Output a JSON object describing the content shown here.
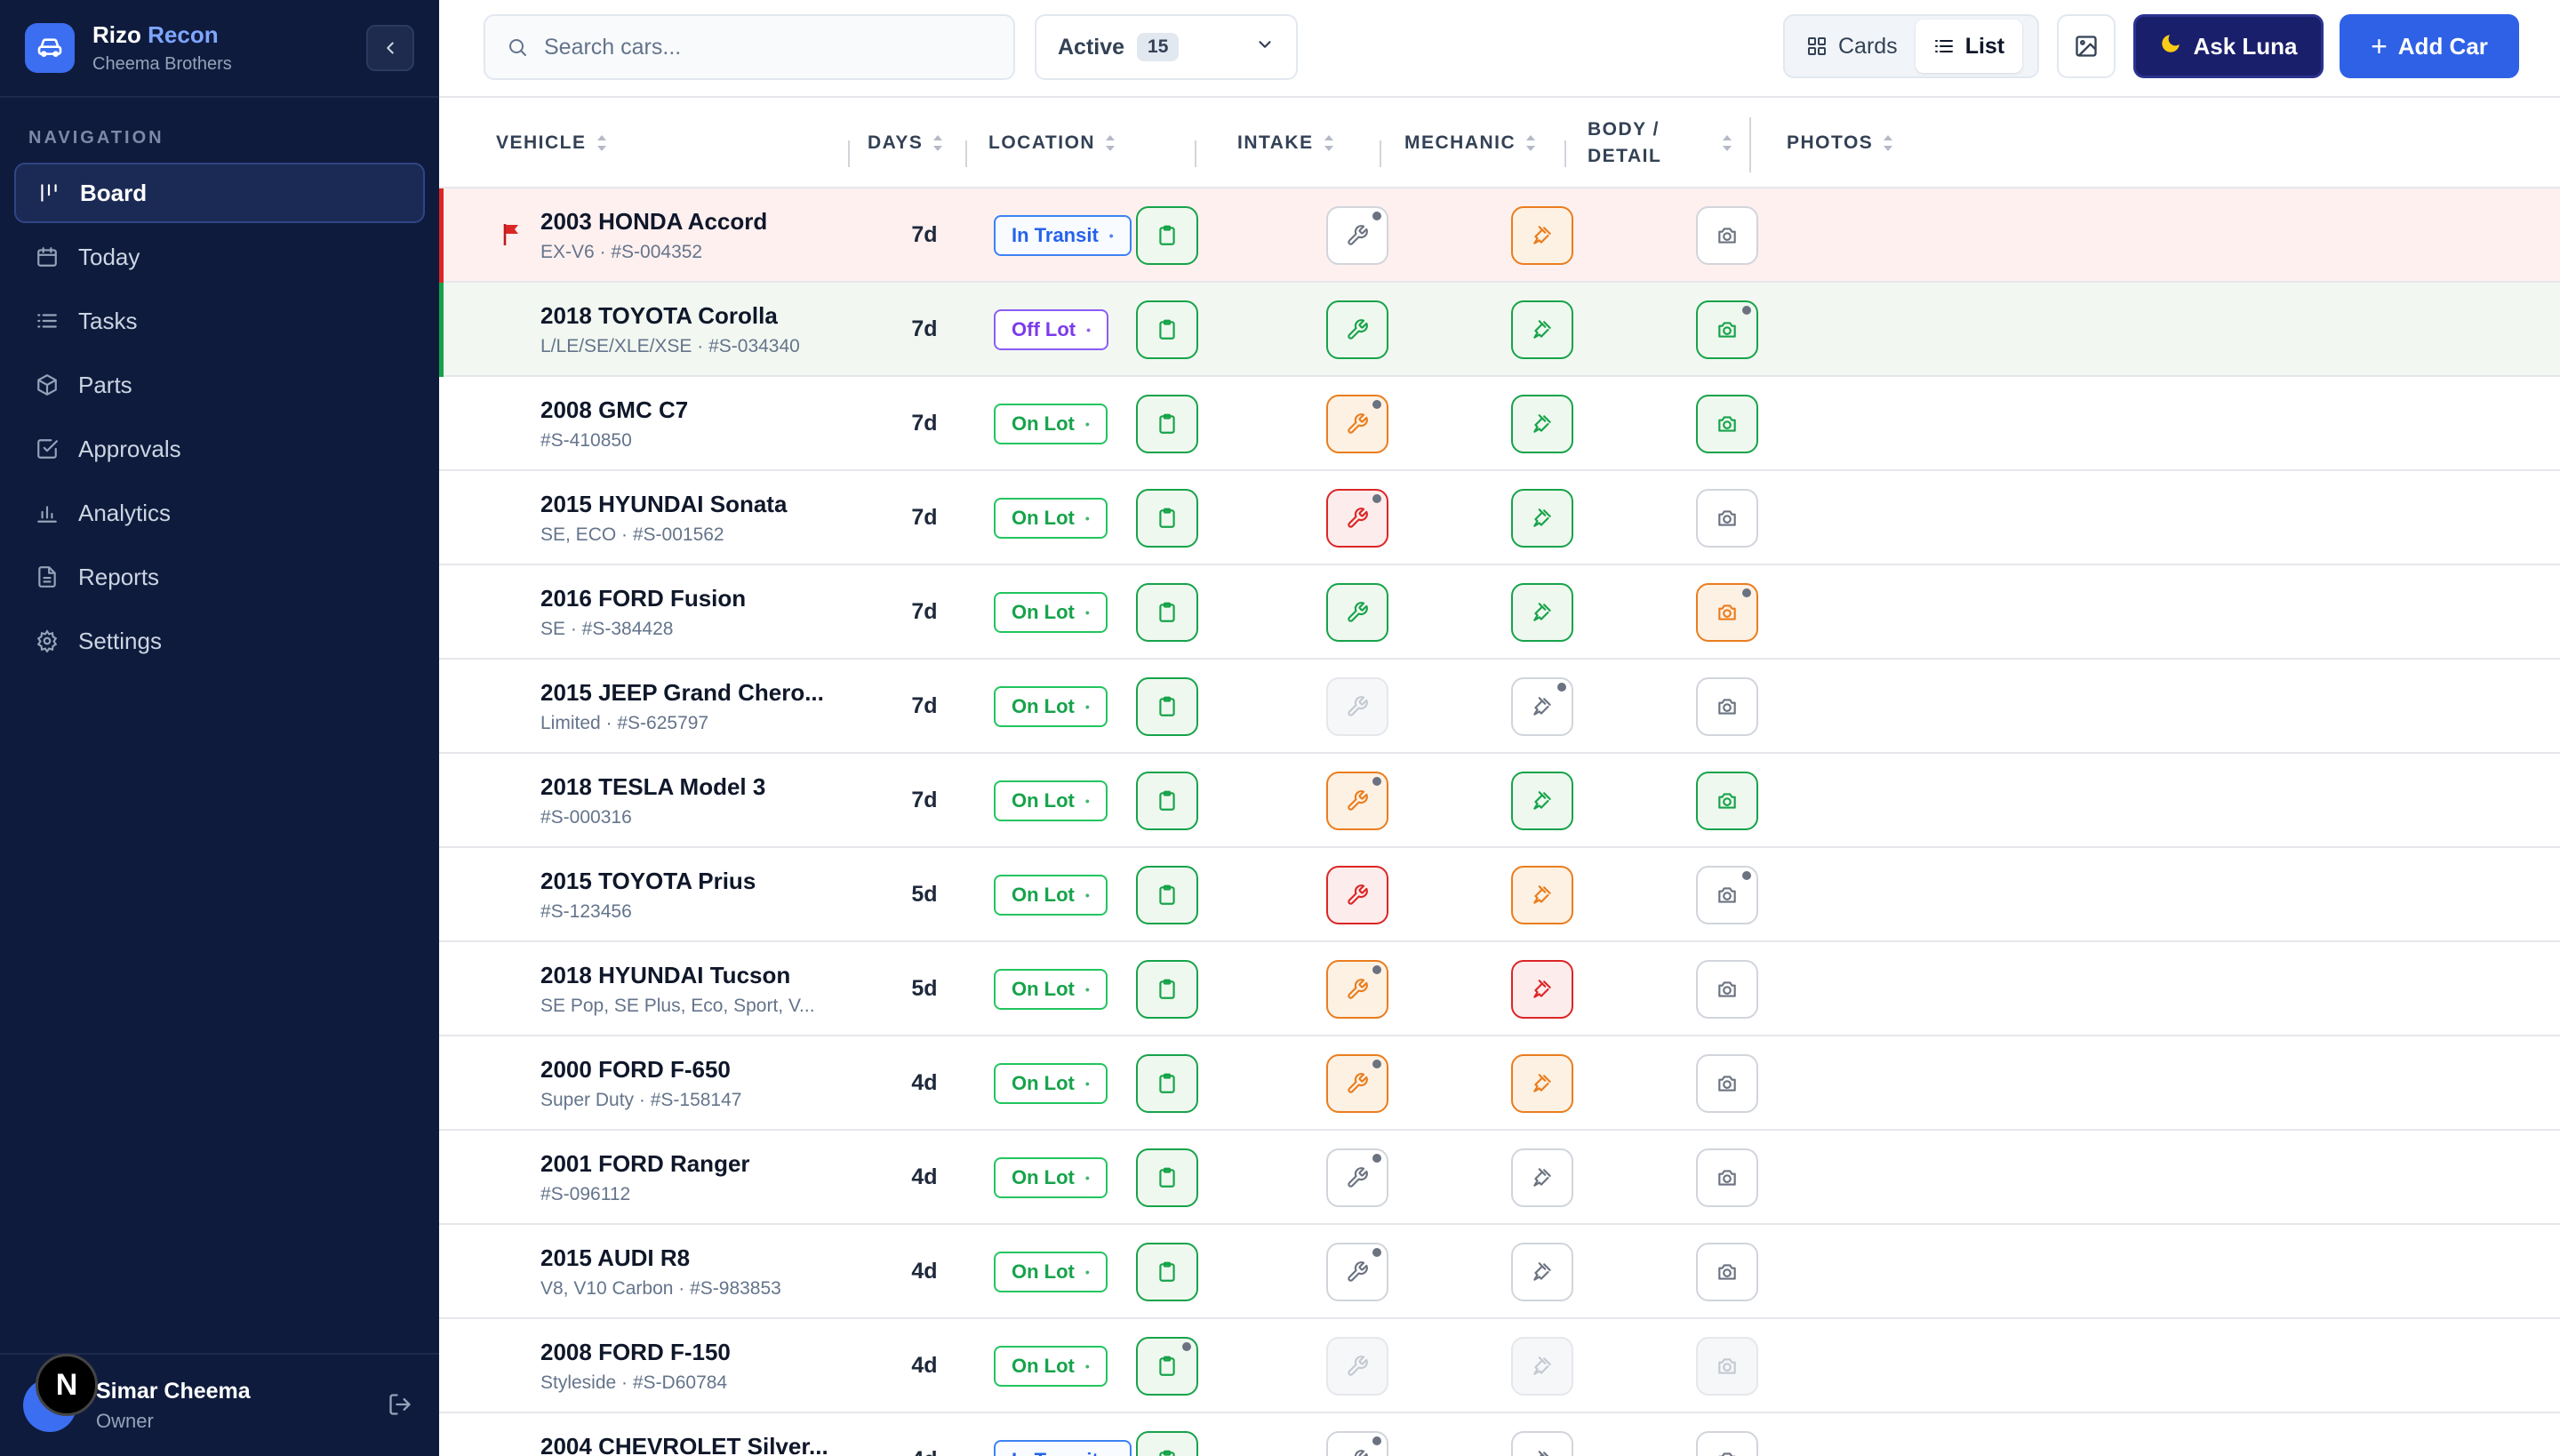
{
  "brand": {
    "title_main": "Rizo",
    "title_accent": "Recon",
    "subtitle": "Cheema Brothers"
  },
  "nav": {
    "heading": "NAVIGATION",
    "items": [
      {
        "label": "Board",
        "icon": "board-icon",
        "active": true
      },
      {
        "label": "Today",
        "icon": "calendar-icon"
      },
      {
        "label": "Tasks",
        "icon": "list-icon"
      },
      {
        "label": "Parts",
        "icon": "box-icon"
      },
      {
        "label": "Approvals",
        "icon": "check-square-icon"
      },
      {
        "label": "Analytics",
        "icon": "bar-chart-icon"
      },
      {
        "label": "Reports",
        "icon": "file-text-icon"
      },
      {
        "label": "Settings",
        "icon": "gear-icon"
      }
    ]
  },
  "user": {
    "badge": "N",
    "name": "Simar Cheema",
    "role": "Owner"
  },
  "toolbar": {
    "search_placeholder": "Search cars...",
    "filter_label": "Active",
    "filter_count": "15",
    "cards_label": "Cards",
    "list_label": "List",
    "ask_label": "Ask Luna",
    "add_label": "Add Car"
  },
  "columns": {
    "vehicle": "VEHICLE",
    "days": "DAYS",
    "location": "LOCATION",
    "intake": "INTAKE",
    "mechanic": "MECHANIC",
    "body_line1": "BODY /",
    "body_line2": "DETAIL",
    "photos": "PHOTOS"
  },
  "colors": {
    "sidebar_bg": "#0f1b3d",
    "accent_blue": "#2f61e6",
    "ask_bg": "#1a1f6b",
    "status_green": "#16a34a",
    "status_orange": "#ea7d1e",
    "status_red": "#dc2626",
    "status_gray": "#6b7280"
  },
  "rows": [
    {
      "title": "2003 HONDA Accord",
      "sub": "EX-V6 · #S-004352",
      "days": "7d",
      "location": "In Transit",
      "loc_type": "transit",
      "flag": true,
      "row_type": "flagged",
      "intake": "green",
      "mechanic": "gray-dot",
      "body": "orange",
      "photos": "gray"
    },
    {
      "title": "2018 TOYOTA Corolla",
      "sub": "L/LE/SE/XLE/XSE · #S-034340",
      "days": "7d",
      "location": "Off Lot",
      "loc_type": "offlot",
      "row_type": "green",
      "intake": "green",
      "mechanic": "green",
      "body": "green",
      "photos": "green-dot"
    },
    {
      "title": "2008 GMC C7",
      "sub": "#S-410850",
      "days": "7d",
      "location": "On Lot",
      "loc_type": "onlot",
      "intake": "green",
      "mechanic": "orange-dot",
      "body": "green",
      "photos": "green"
    },
    {
      "title": "2015 HYUNDAI Sonata",
      "sub": "SE, ECO · #S-001562",
      "days": "7d",
      "location": "On Lot",
      "loc_type": "onlot",
      "intake": "green",
      "mechanic": "red-dot",
      "body": "green",
      "photos": "gray"
    },
    {
      "title": "2016 FORD Fusion",
      "sub": "SE · #S-384428",
      "days": "7d",
      "location": "On Lot",
      "loc_type": "onlot",
      "intake": "green",
      "mechanic": "green",
      "body": "green",
      "photos": "orange-dot"
    },
    {
      "title": "2015 JEEP Grand Chero...",
      "sub": "Limited · #S-625797",
      "days": "7d",
      "location": "On Lot",
      "loc_type": "onlot",
      "intake": "green",
      "mechanic": "faint",
      "body": "gray-dot",
      "photos": "gray"
    },
    {
      "title": "2018 TESLA Model 3",
      "sub": "#S-000316",
      "days": "7d",
      "location": "On Lot",
      "loc_type": "onlot",
      "intake": "green",
      "mechanic": "orange-dot",
      "body": "green",
      "photos": "green"
    },
    {
      "title": "2015 TOYOTA Prius",
      "sub": "#S-123456",
      "days": "5d",
      "location": "On Lot",
      "loc_type": "onlot",
      "intake": "green",
      "mechanic": "red",
      "body": "orange",
      "photos": "gray-dot"
    },
    {
      "title": "2018 HYUNDAI Tucson",
      "sub": "SE Pop, SE Plus, Eco, Sport, V...",
      "days": "5d",
      "location": "On Lot",
      "loc_type": "onlot",
      "intake": "green",
      "mechanic": "orange-dot",
      "body": "red",
      "photos": "gray"
    },
    {
      "title": "2000 FORD F-650",
      "sub": "Super Duty · #S-158147",
      "days": "4d",
      "location": "On Lot",
      "loc_type": "onlot",
      "intake": "green",
      "mechanic": "orange-dot",
      "body": "orange",
      "photos": "gray"
    },
    {
      "title": "2001 FORD Ranger",
      "sub": "#S-096112",
      "days": "4d",
      "location": "On Lot",
      "loc_type": "onlot",
      "intake": "green",
      "mechanic": "gray-dot",
      "body": "gray",
      "photos": "gray"
    },
    {
      "title": "2015 AUDI R8",
      "sub": "V8, V10 Carbon · #S-983853",
      "days": "4d",
      "location": "On Lot",
      "loc_type": "onlot",
      "intake": "green",
      "mechanic": "gray-dot",
      "body": "gray",
      "photos": "gray"
    },
    {
      "title": "2008 FORD F-150",
      "sub": "Styleside · #S-D60784",
      "days": "4d",
      "location": "On Lot",
      "loc_type": "onlot",
      "intake": "green-dot",
      "mechanic": "faint",
      "body": "faint",
      "photos": "faint"
    },
    {
      "title": "2004 CHEVROLET Silver...",
      "sub": "",
      "days": "4d",
      "location": "In Transit",
      "loc_type": "transit",
      "intake": "green",
      "mechanic": "gray-dot",
      "body": "gray",
      "photos": "gray"
    }
  ]
}
